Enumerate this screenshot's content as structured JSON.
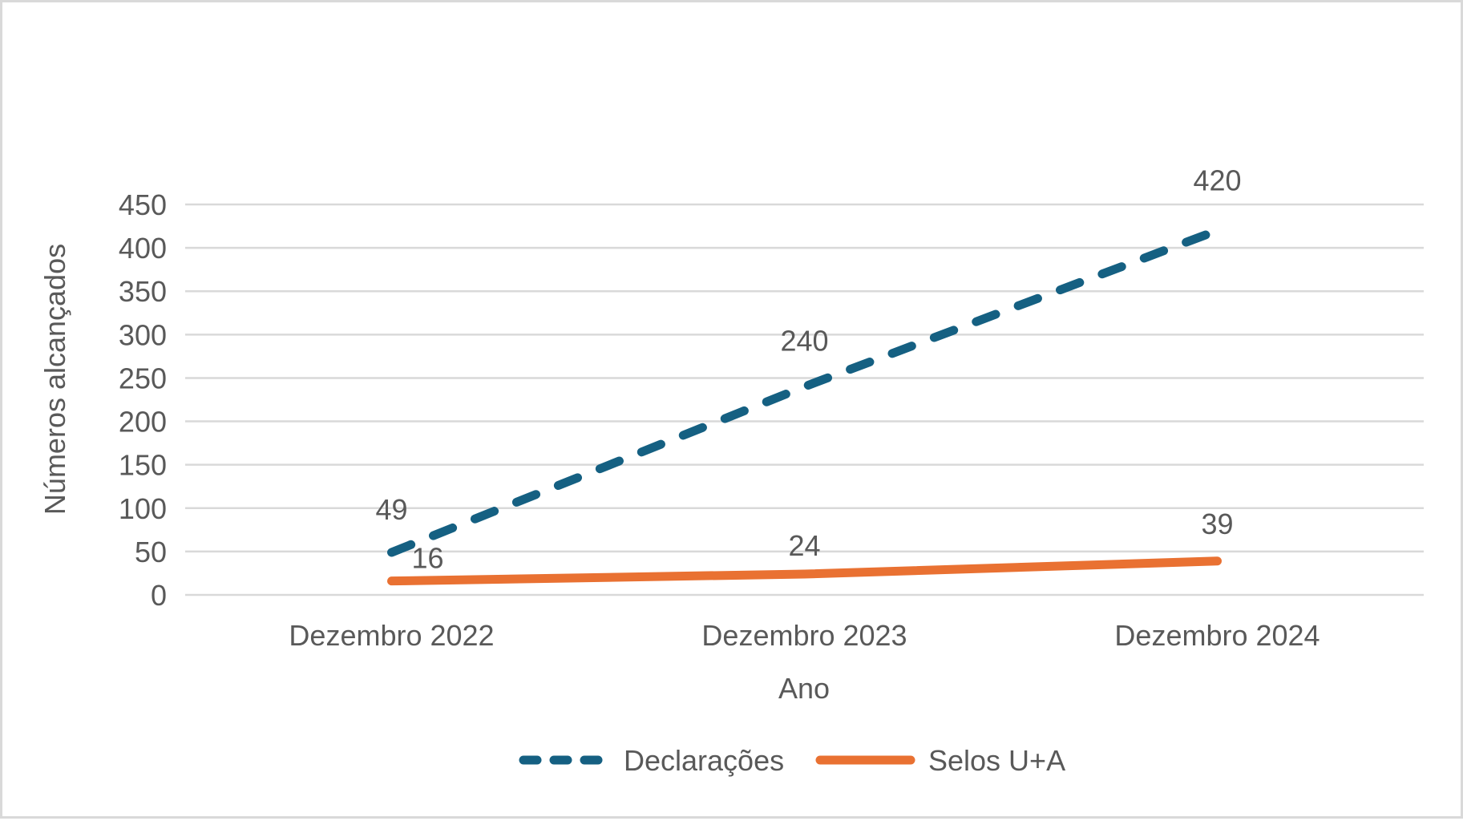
{
  "chart_data": {
    "type": "line",
    "categories": [
      "Dezembro 2022",
      "Dezembro 2023",
      "Dezembro 2024"
    ],
    "series": [
      {
        "name": "Declarações",
        "values": [
          49,
          240,
          420
        ],
        "data_labels": [
          "49",
          "240",
          "420"
        ],
        "color": "#156082",
        "line_style": "dashed"
      },
      {
        "name": "Selos U+A",
        "values": [
          16,
          24,
          39
        ],
        "data_labels": [
          "16",
          "24",
          "39"
        ],
        "color": "#E97132",
        "line_style": "solid"
      }
    ],
    "title": "",
    "xlabel": "Ano",
    "ylabel": "Números alcançados",
    "ylim": [
      0,
      450
    ],
    "yticks": [
      0,
      50,
      100,
      150,
      200,
      250,
      300,
      350,
      400,
      450
    ],
    "grid": true,
    "gridline_color": "#D9D9D9",
    "text_color": "#595959",
    "legend_position": "bottom"
  },
  "axes": {
    "x_title": "Ano",
    "y_title": "Números alcançados"
  },
  "legend": {
    "items": [
      {
        "label": "Declarações"
      },
      {
        "label": "Selos U+A"
      }
    ]
  }
}
